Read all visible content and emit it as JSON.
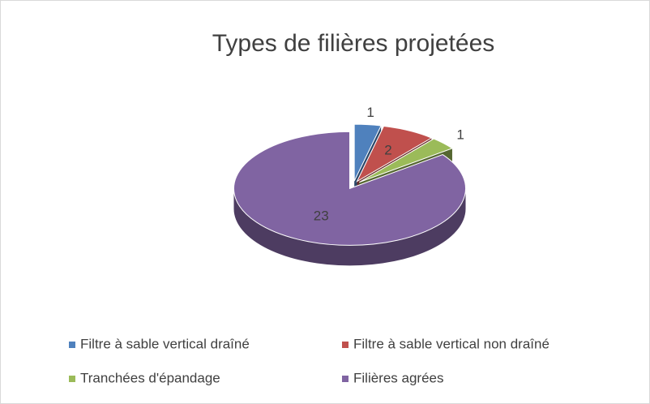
{
  "chart_data": {
    "type": "pie",
    "title": "Types de filières projetées",
    "categories": [
      "Filtre à sable vertical draîné",
      "Filtre à sable vertical non draîné",
      "Tranchées d'épandage",
      "Filières agrées"
    ],
    "values": [
      1,
      2,
      1,
      23
    ],
    "colors": [
      "#4f81bd",
      "#c0504d",
      "#9bbb59",
      "#8064a2"
    ],
    "legend": "bottom"
  }
}
